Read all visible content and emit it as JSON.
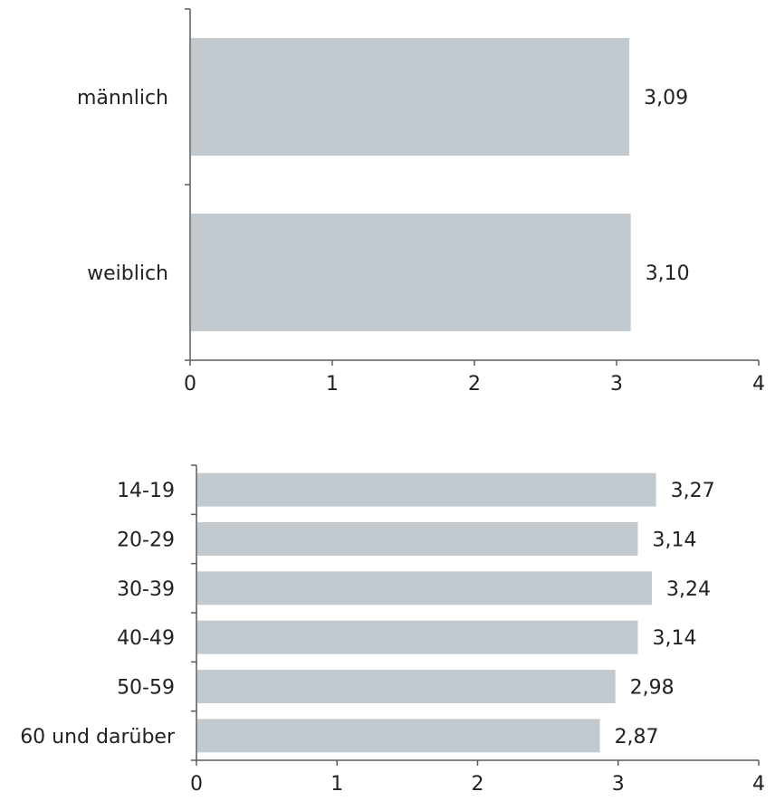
{
  "chart_data": [
    {
      "type": "bar",
      "orientation": "horizontal",
      "categories": [
        "männlich",
        "weiblich"
      ],
      "values": [
        3.09,
        3.1
      ],
      "value_labels": [
        "3,09",
        "3,10"
      ],
      "xlim": [
        0,
        4
      ],
      "xticks": [
        "0",
        "1",
        "2",
        "3",
        "4"
      ],
      "grid": false,
      "bar_color": "#c3cacf"
    },
    {
      "type": "bar",
      "orientation": "horizontal",
      "categories": [
        "14-19",
        "20-29",
        "30-39",
        "40-49",
        "50-59",
        "60 und darüber"
      ],
      "values": [
        3.27,
        3.14,
        3.24,
        3.14,
        2.98,
        2.87
      ],
      "value_labels": [
        "3,27",
        "3,14",
        "3,24",
        "3,14",
        "2,98",
        "2,87"
      ],
      "xlim": [
        0,
        4
      ],
      "xticks": [
        "0",
        "1",
        "2",
        "3",
        "4"
      ],
      "grid": false,
      "bar_color": "#c3cacf"
    }
  ]
}
